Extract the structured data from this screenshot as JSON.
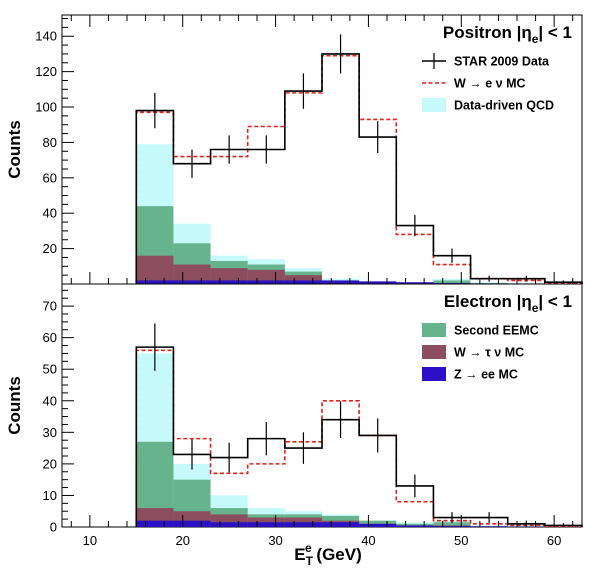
{
  "chart_data": [
    {
      "type": "bar",
      "panel": "top",
      "title": "Positron |ηe| < 1",
      "title_parts": [
        "Positron |η",
        "e",
        "| < 1"
      ],
      "ylabel": "Counts",
      "xlim": [
        7,
        63
      ],
      "ylim": [
        0,
        152
      ],
      "yticks": [
        20,
        40,
        60,
        80,
        100,
        120,
        140
      ],
      "bin_edges": [
        15,
        19,
        23,
        27,
        31,
        35,
        39,
        43,
        47,
        51,
        55,
        59,
        63
      ],
      "series": [
        {
          "key": "qcd",
          "name": "Data-driven QCD",
          "values": [
            79,
            34,
            16,
            14,
            9,
            3,
            1,
            1,
            3,
            1,
            0.5,
            0.3
          ]
        },
        {
          "key": "eemc",
          "name": "Second EEMC",
          "values": [
            44,
            23,
            13,
            11,
            7,
            2,
            1,
            0.5,
            2,
            0.5,
            0.3,
            0.2
          ]
        },
        {
          "key": "tau",
          "name": "W → τ ν MC",
          "values": [
            16,
            11,
            9,
            8,
            5,
            2,
            1,
            0.5,
            0.5,
            0.3,
            0.2,
            0.1
          ]
        },
        {
          "key": "z",
          "name": "Z → ee MC",
          "values": [
            2,
            2,
            2,
            2,
            2,
            2,
            1.5,
            1,
            0.5,
            0.3,
            0.2,
            0.1
          ]
        },
        {
          "key": "mc",
          "name": "W → e ν MC",
          "values": [
            97,
            72,
            72,
            89,
            108,
            129,
            93,
            28,
            11,
            3,
            2,
            0.5
          ]
        },
        {
          "key": "data",
          "name": "STAR 2009 Data",
          "values": [
            98,
            68,
            76,
            76,
            109,
            130,
            83,
            33,
            16,
            3,
            3,
            1
          ],
          "errors": [
            10,
            8,
            8,
            8,
            10,
            11,
            9,
            6,
            4,
            1.7,
            1.7,
            1
          ]
        }
      ],
      "legend": [
        "data",
        "mc",
        "qcd"
      ],
      "legend_position": "top-right"
    },
    {
      "type": "bar",
      "panel": "bottom",
      "title": "Electron |ηe| < 1",
      "title_parts": [
        "Electron |η",
        "e",
        "| < 1"
      ],
      "ylabel": "Counts",
      "xlabel_parts": [
        "E",
        "T",
        "e",
        " (GeV)"
      ],
      "xlim": [
        7,
        63
      ],
      "ylim": [
        0,
        77
      ],
      "yticks": [
        0,
        10,
        20,
        30,
        40,
        50,
        60,
        70
      ],
      "xticks": [
        10,
        20,
        30,
        40,
        50,
        60
      ],
      "bin_edges": [
        15,
        19,
        23,
        27,
        31,
        35,
        39,
        43,
        47,
        51,
        55,
        59,
        63
      ],
      "series": [
        {
          "key": "qcd",
          "name": "Data-driven QCD",
          "values": [
            55,
            20,
            10,
            6,
            5,
            4,
            2,
            1.5,
            2,
            0.5,
            0.3,
            0.2
          ]
        },
        {
          "key": "eemc",
          "name": "Second EEMC",
          "values": [
            27,
            15,
            6,
            4,
            4,
            3.5,
            2,
            1,
            1.5,
            0.3,
            0.2,
            0.1
          ]
        },
        {
          "key": "tau",
          "name": "W → τ ν MC",
          "values": [
            6,
            5,
            4,
            3,
            3,
            2,
            1,
            0.5,
            0.5,
            0.2,
            0.1,
            0.1
          ]
        },
        {
          "key": "z",
          "name": "Z → ee MC",
          "values": [
            2,
            2,
            1.5,
            1.5,
            1.5,
            1.5,
            1,
            0.5,
            0.3,
            0.2,
            0.1,
            0.1
          ]
        },
        {
          "key": "mc",
          "name": "W → e ν MC",
          "values": [
            56,
            28,
            17,
            20,
            27,
            40,
            29,
            8,
            2,
            1,
            0.5,
            0.2
          ]
        },
        {
          "key": "data",
          "name": "STAR 2009 Data",
          "values": [
            57,
            23,
            22,
            28,
            25,
            34,
            29,
            13,
            3,
            3,
            1,
            0.5
          ],
          "errors": [
            7.5,
            4.8,
            4.7,
            5.3,
            5,
            5.8,
            5.4,
            3.6,
            1.7,
            1.7,
            1,
            0.7
          ]
        }
      ],
      "legend": [
        "eemc",
        "tau",
        "z"
      ],
      "legend_position": "top-right"
    }
  ],
  "colors": {
    "qcd": "#c6fafa",
    "eemc": "#66b38d",
    "tau": "#8c4e5e",
    "z": "#2b10c6",
    "mc": "#e8201c",
    "data": "#000000"
  }
}
